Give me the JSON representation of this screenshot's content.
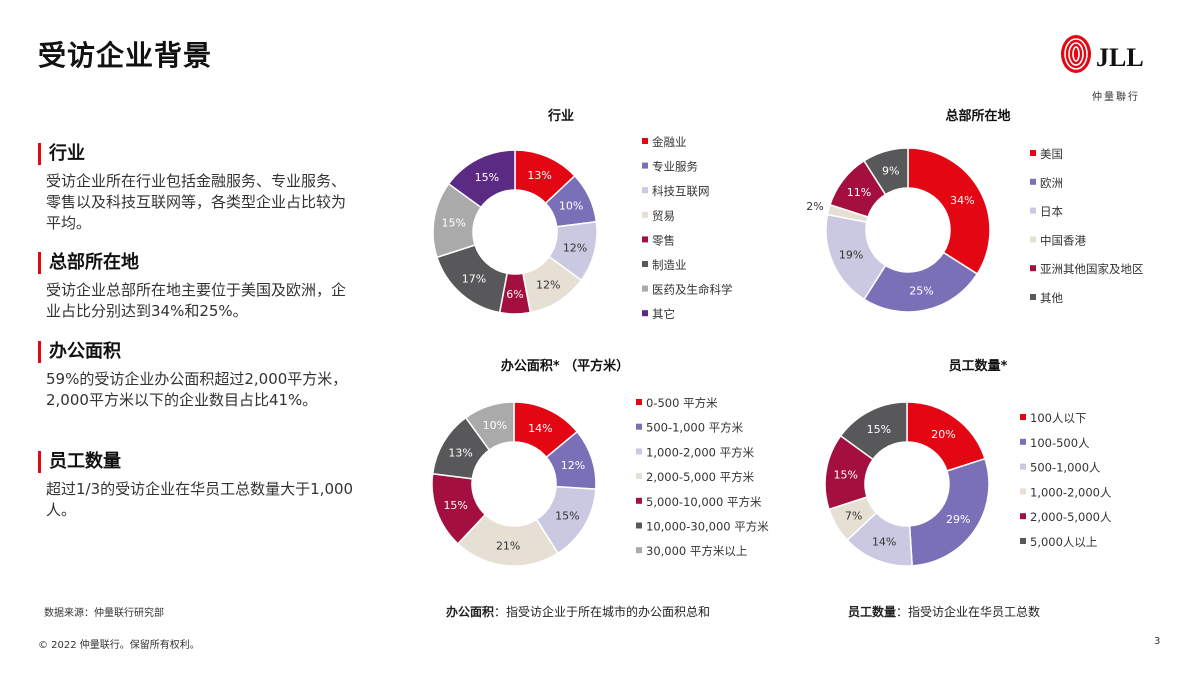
{
  "page": {
    "title": "受访企业背景",
    "logo_text": "JLL",
    "logo_sub": "仲量聯行",
    "page_number": "3",
    "source": "数据来源：仲量联行研究部",
    "copyright": "© 2022 仲量联行。保留所有权利。",
    "footnotes": [
      {
        "term": "办公面积",
        "text": "：指受访企业于所在城市的办公面积总和"
      },
      {
        "term": "员工数量",
        "text": "：指受访企业在华员工总数"
      }
    ]
  },
  "sections": [
    {
      "heading": "行业",
      "body": "受访企业所在行业包括金融服务、专业服务、零售以及科技互联网等，各类型企业占比较为平均。"
    },
    {
      "heading": "总部所在地",
      "body": "受访企业总部所在地主要位于美国及欧洲，企业占比分别达到34%和25%。"
    },
    {
      "heading": "办公面积",
      "body": "59%的受访企业办公面积超过2,000平方米，2,000平方米以下的企业数目占比41%。"
    },
    {
      "heading": "员工数量",
      "body": "超过1/3的受访企业在华员工总数量大于1,000人。"
    }
  ],
  "chart_data": [
    {
      "type": "pie",
      "title": "行业",
      "categories": [
        "金融业",
        "专业服务",
        "科技互联网",
        "贸易",
        "零售",
        "制造业",
        "医药及生命科学",
        "其它"
      ],
      "values": [
        13,
        10,
        12,
        12,
        6,
        17,
        15,
        15
      ],
      "labels": [
        "13%",
        "10%",
        "12%",
        "12%",
        "6%",
        "17%",
        "15%",
        "15%"
      ],
      "colors": [
        "#e30613",
        "#7a70b8",
        "#cbc8e2",
        "#e6e0d4",
        "#a3103f",
        "#58585a",
        "#aaaaaa",
        "#5b2a83"
      ],
      "legend": "right"
    },
    {
      "type": "pie",
      "title": "总部所在地",
      "categories": [
        "美国",
        "欧洲",
        "日本",
        "中国香港",
        "亚洲其他国家及地区",
        "其他"
      ],
      "values": [
        34,
        25,
        19,
        2,
        11,
        9
      ],
      "labels": [
        "34%",
        "25%",
        "19%",
        "2%",
        "11%",
        "9%"
      ],
      "colors": [
        "#e30613",
        "#7a70b8",
        "#cbc8e2",
        "#e6e0d4",
        "#a3103f",
        "#58585a"
      ],
      "legend": "right"
    },
    {
      "type": "pie",
      "title": "办公面积* （平方米）",
      "categories": [
        "0-500 平方米",
        "500-1,000 平方米",
        "1,000-2,000 平方米",
        "2,000-5,000 平方米",
        "5,000-10,000 平方米",
        "10,000-30,000 平方米",
        "30,000 平方米以上"
      ],
      "values": [
        14,
        12,
        15,
        21,
        15,
        13,
        10
      ],
      "labels": [
        "14%",
        "12%",
        "15%",
        "21%",
        "15%",
        "13%",
        "10%"
      ],
      "colors": [
        "#e30613",
        "#7a70b8",
        "#cbc8e2",
        "#e6e0d4",
        "#a3103f",
        "#58585a",
        "#aaaaaa"
      ],
      "legend": "right"
    },
    {
      "type": "pie",
      "title": "员工数量*",
      "categories": [
        "100人以下",
        "100-500人",
        "500-1,000人",
        "1,000-2,000人",
        "2,000-5,000人",
        "5,000人以上"
      ],
      "values": [
        20,
        29,
        14,
        7,
        15,
        15
      ],
      "labels": [
        "20%",
        "29%",
        "14%",
        "7%",
        "15%",
        "15%"
      ],
      "colors": [
        "#e30613",
        "#7a70b8",
        "#cbc8e2",
        "#e6e0d4",
        "#a3103f",
        "#58585a"
      ],
      "legend": "right"
    }
  ]
}
